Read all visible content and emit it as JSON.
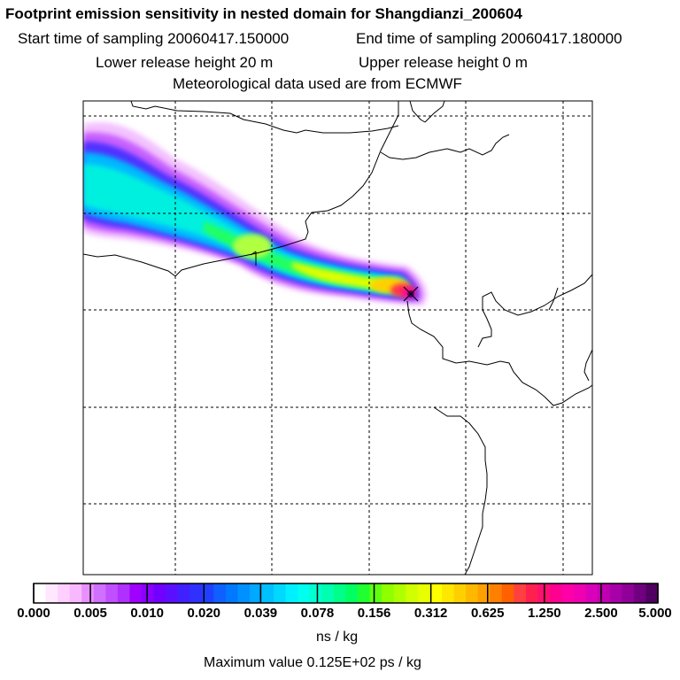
{
  "header": {
    "title": "Footprint emission sensitivity in nested domain for Shangdianzi_200604",
    "start_label": "Start time of sampling 20060417.150000",
    "end_label": "End time of sampling 20060417.180000",
    "lower_label": "Lower release height   20 m",
    "upper_label": "Upper release height    0 m",
    "met_label": "Meteorological data used are from ECMWF"
  },
  "map": {
    "station_marker": "release-point-marker",
    "plume_peak_color": "#ff00a0"
  },
  "colorbar": {
    "ticks": [
      "0.000",
      "0.005",
      "0.010",
      "0.020",
      "0.039",
      "0.078",
      "0.156",
      "0.312",
      "0.625",
      "1.250",
      "2.500",
      "5.000"
    ],
    "colors": [
      "#ffffff",
      "#ffe8ff",
      "#ffd0ff",
      "#f8b8ff",
      "#e890ff",
      "#d070ff",
      "#c050ff",
      "#b030ff",
      "#a000ff",
      "#8800ff",
      "#7000ff",
      "#5a10ff",
      "#4020ff",
      "#3030ff",
      "#2040ff",
      "#1060ff",
      "#0078ff",
      "#0090ff",
      "#00a8ff",
      "#00c0ff",
      "#00d8ff",
      "#00f0ff",
      "#00ffee",
      "#00ffd0",
      "#00ffb0",
      "#00ff88",
      "#00ff60",
      "#20ff30",
      "#60ff10",
      "#90ff00",
      "#b0ff00",
      "#d0ff00",
      "#e8ff00",
      "#ffff00",
      "#ffe800",
      "#ffd000",
      "#ffb800",
      "#ffa000",
      "#ff8000",
      "#ff6000",
      "#ff4040",
      "#ff2050",
      "#ff1070",
      "#ff0090",
      "#ff00a8",
      "#f000b0",
      "#d800b8",
      "#c000b0",
      "#a800a8",
      "#900098",
      "#700080",
      "#500060"
    ],
    "units": "ns / kg",
    "max_value": "Maximum value  0.125E+02 ps / kg"
  }
}
